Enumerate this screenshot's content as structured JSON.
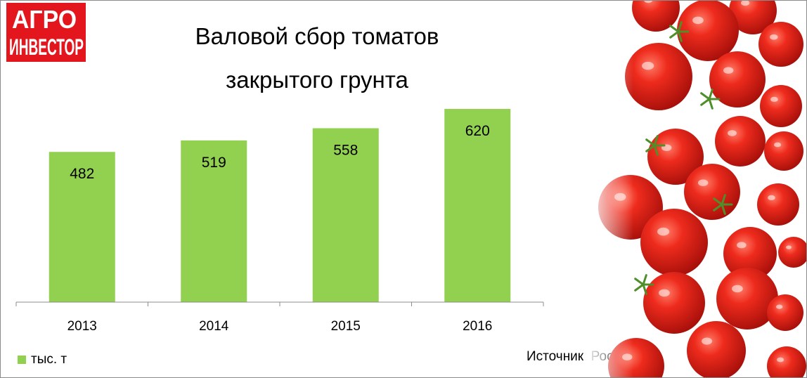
{
  "logo": {
    "line1": "АГРО",
    "line2": "ИНВЕСТОР",
    "color": "#e3161d"
  },
  "title": {
    "line1": "Валовой сбор томатов",
    "line2": "закрытого грунта"
  },
  "source": "Источник: Росстат",
  "photo": {
    "icon": "tomatoes-photo"
  },
  "chart_data": {
    "type": "bar",
    "categories": [
      "2013",
      "2014",
      "2015",
      "2016"
    ],
    "series": [
      {
        "name": "тыс. т",
        "values": [
          482,
          519,
          558,
          620
        ],
        "color": "#92d050"
      }
    ],
    "title": "Валовой сбор томатов закрытого грунта",
    "xlabel": "",
    "ylabel": "",
    "ylim": [
      0,
      660
    ],
    "grid": false,
    "legend": "bottom-left",
    "data_labels": true
  }
}
